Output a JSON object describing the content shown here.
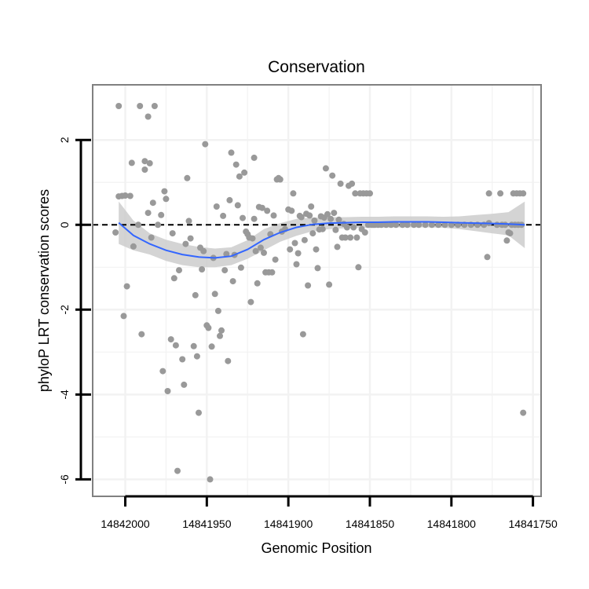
{
  "chart_data": {
    "type": "scatter",
    "title": "Conservation",
    "xlabel": "Genomic Position",
    "ylabel": "phyloP LRT conservation scores",
    "x_reversed": true,
    "xlim": [
      14842020,
      14841745
    ],
    "ylim": [
      -6.4,
      3.3
    ],
    "x_ticks": [
      14842000,
      14841950,
      14841900,
      14841850,
      14841800,
      14841750
    ],
    "x_tick_labels": [
      "14842000",
      "14841950",
      "14841900",
      "14841850",
      "14841800",
      "14841750"
    ],
    "y_ticks": [
      2,
      0,
      -2,
      -4,
      -6
    ],
    "y_tick_labels": [
      "2",
      "0",
      "-2",
      "-4",
      "-6"
    ],
    "grid": true,
    "reference_line": {
      "y": 0,
      "style": "dashed"
    },
    "colors": {
      "points": "#999999",
      "smooth": "#3366ff",
      "ribbon": "#cccccc",
      "grid": "#f2f2f2",
      "frame": "#808080"
    },
    "series": [
      {
        "name": "phyloP LRT score",
        "points": [
          [
            14842004,
            2.8
          ],
          [
            14842004,
            0.67
          ],
          [
            14842002,
            0.68
          ],
          [
            14842001,
            -2.15
          ],
          [
            14842000,
            0.69
          ],
          [
            14842006,
            -0.18
          ],
          [
            14841999,
            -1.45
          ],
          [
            14841997,
            0.68
          ],
          [
            14841996,
            1.46
          ],
          [
            14841995,
            -0.51
          ],
          [
            14841992,
            0.0
          ],
          [
            14841991,
            2.8
          ],
          [
            14841990,
            -2.58
          ],
          [
            14841988,
            1.3
          ],
          [
            14841988,
            1.5
          ],
          [
            14841986,
            2.55
          ],
          [
            14841985,
            1.45
          ],
          [
            14841984,
            -0.3
          ],
          [
            14841986,
            0.28
          ],
          [
            14841983,
            0.52
          ],
          [
            14841982,
            2.8
          ],
          [
            14841980,
            0.0
          ],
          [
            14841978,
            0.23
          ],
          [
            14841977,
            -3.45
          ],
          [
            14841976,
            0.79
          ],
          [
            14841975,
            0.61
          ],
          [
            14841974,
            -3.92
          ],
          [
            14841972,
            -2.7
          ],
          [
            14841971,
            -0.2
          ],
          [
            14841970,
            -1.26
          ],
          [
            14841969,
            -2.84
          ],
          [
            14841968,
            -5.8
          ],
          [
            14841967,
            -1.07
          ],
          [
            14841965,
            -3.17
          ],
          [
            14841964,
            -3.77
          ],
          [
            14841963,
            -0.45
          ],
          [
            14841962,
            1.1
          ],
          [
            14841961,
            0.09
          ],
          [
            14841960,
            -0.32
          ],
          [
            14841958,
            -2.86
          ],
          [
            14841957,
            -1.66
          ],
          [
            14841956,
            -3.1
          ],
          [
            14841955,
            -4.43
          ],
          [
            14841954,
            -0.54
          ],
          [
            14841953,
            -1.05
          ],
          [
            14841952,
            -0.62
          ],
          [
            14841951,
            1.9
          ],
          [
            14841950,
            -2.37
          ],
          [
            14841949,
            -2.43
          ],
          [
            14841948,
            -6.0
          ],
          [
            14841947,
            -2.87
          ],
          [
            14841946,
            -0.78
          ],
          [
            14841945,
            -1.63
          ],
          [
            14841944,
            0.43
          ],
          [
            14841943,
            -2.03
          ],
          [
            14841942,
            -2.62
          ],
          [
            14841941,
            -2.49
          ],
          [
            14841940,
            0.21
          ],
          [
            14841939,
            -1.07
          ],
          [
            14841938,
            -0.69
          ],
          [
            14841937,
            -3.21
          ],
          [
            14841936,
            0.58
          ],
          [
            14841935,
            1.7
          ],
          [
            14841934,
            -1.33
          ],
          [
            14841933,
            -0.71
          ],
          [
            14841932,
            1.42
          ],
          [
            14841931,
            0.46
          ],
          [
            14841930,
            1.14
          ],
          [
            14841929,
            -1.01
          ],
          [
            14841928,
            0.16
          ],
          [
            14841927,
            1.23
          ],
          [
            14841926,
            -0.16
          ],
          [
            14841925,
            -0.22
          ],
          [
            14841924,
            -0.3
          ],
          [
            14841923,
            -1.82
          ],
          [
            14841922,
            -0.32
          ],
          [
            14841921,
            0.14
          ],
          [
            14841921,
            1.58
          ],
          [
            14841920,
            -0.62
          ],
          [
            14841919,
            -1.38
          ],
          [
            14841918,
            0.42
          ],
          [
            14841917,
            -0.54
          ],
          [
            14841916,
            0.4
          ],
          [
            14841915,
            -0.66
          ],
          [
            14841914,
            -1.12
          ],
          [
            14841913,
            0.33
          ],
          [
            14841912,
            -1.12
          ],
          [
            14841911,
            -0.22
          ],
          [
            14841910,
            -1.12
          ],
          [
            14841909,
            0.22
          ],
          [
            14841908,
            -0.82
          ],
          [
            14841907,
            1.07
          ],
          [
            14841906,
            1.1
          ],
          [
            14841905,
            1.07
          ],
          [
            14841904,
            -0.16
          ],
          [
            14841902,
            -0.1
          ],
          [
            14841900,
            0.36
          ],
          [
            14841899,
            -0.58
          ],
          [
            14841898,
            0.33
          ],
          [
            14841897,
            0.74
          ],
          [
            14841896,
            -0.43
          ],
          [
            14841895,
            -0.93
          ],
          [
            14841894,
            -0.67
          ],
          [
            14841893,
            0.21
          ],
          [
            14841892,
            0.18
          ],
          [
            14841891,
            -2.58
          ],
          [
            14841890,
            -0.36
          ],
          [
            14841889,
            0.26
          ],
          [
            14841888,
            -1.43
          ],
          [
            14841887,
            0.22
          ],
          [
            14841886,
            0.43
          ],
          [
            14841885,
            -0.2
          ],
          [
            14841884,
            0.1
          ],
          [
            14841883,
            -0.58
          ],
          [
            14841882,
            -1.02
          ],
          [
            14841881,
            -0.11
          ],
          [
            14841880,
            0.2
          ],
          [
            14841879,
            -0.1
          ],
          [
            14841878,
            0.17
          ],
          [
            14841877,
            1.33
          ],
          [
            14841876,
            0.25
          ],
          [
            14841875,
            -1.41
          ],
          [
            14841874,
            0.14
          ],
          [
            14841873,
            1.16
          ],
          [
            14841872,
            0.28
          ],
          [
            14841871,
            -0.12
          ],
          [
            14841870,
            -0.52
          ],
          [
            14841869,
            0.12
          ],
          [
            14841868,
            0.97
          ],
          [
            14841867,
            -0.3
          ],
          [
            14841866,
            0.02
          ],
          [
            14841865,
            -0.3
          ],
          [
            14841864,
            -0.06
          ],
          [
            14841863,
            0.92
          ],
          [
            14841862,
            -0.3
          ],
          [
            14841861,
            0.97
          ],
          [
            14841860,
            -0.06
          ],
          [
            14841859,
            0.74
          ],
          [
            14841858,
            -0.3
          ],
          [
            14841857,
            -1.0
          ],
          [
            14841856,
            0.74
          ],
          [
            14841855,
            -0.1
          ],
          [
            14841854,
            0.74
          ],
          [
            14841853,
            -0.18
          ],
          [
            14841852,
            0.74
          ],
          [
            14841851,
            0.0
          ],
          [
            14841850,
            0.74
          ],
          [
            14841849,
            0.0
          ],
          [
            14841848,
            0.0
          ],
          [
            14841847,
            0.0
          ],
          [
            14841845,
            0.0
          ],
          [
            14841843,
            0.0
          ],
          [
            14841840,
            0.0
          ],
          [
            14841837,
            0.0
          ],
          [
            14841834,
            0.0
          ],
          [
            14841830,
            0.0
          ],
          [
            14841827,
            0.0
          ],
          [
            14841823,
            0.0
          ],
          [
            14841820,
            0.0
          ],
          [
            14841816,
            0.0
          ],
          [
            14841812,
            0.0
          ],
          [
            14841808,
            0.0
          ],
          [
            14841804,
            0.0
          ],
          [
            14841800,
            0.0
          ],
          [
            14841796,
            0.0
          ],
          [
            14841792,
            0.0
          ],
          [
            14841788,
            0.0
          ],
          [
            14841784,
            0.0
          ],
          [
            14841780,
            0.0
          ],
          [
            14841777,
            0.74
          ],
          [
            14841777,
            0.04
          ],
          [
            14841778,
            -0.76
          ],
          [
            14841772,
            0.0
          ],
          [
            14841770,
            0.74
          ],
          [
            14841769,
            0.0
          ],
          [
            14841767,
            0.0
          ],
          [
            14841766,
            -0.37
          ],
          [
            14841765,
            -0.18
          ],
          [
            14841764,
            -0.2
          ],
          [
            14841763,
            0.0
          ],
          [
            14841762,
            0.74
          ],
          [
            14841761,
            0.0
          ],
          [
            14841760,
            0.74
          ],
          [
            14841759,
            0.0
          ],
          [
            14841758,
            0.74
          ],
          [
            14841757,
            0.0
          ],
          [
            14841756,
            0.74
          ],
          [
            14841756,
            -4.43
          ]
        ]
      }
    ],
    "smooth": {
      "method": "loess",
      "x": [
        14842004,
        14841995,
        14841985,
        14841975,
        14841965,
        14841955,
        14841945,
        14841935,
        14841925,
        14841915,
        14841905,
        14841895,
        14841885,
        14841875,
        14841865,
        14841855,
        14841845,
        14841835,
        14841825,
        14841815,
        14841805,
        14841795,
        14841785,
        14841775,
        14841765,
        14841755
      ],
      "y": [
        0.05,
        -0.25,
        -0.45,
        -0.6,
        -0.7,
        -0.76,
        -0.78,
        -0.74,
        -0.58,
        -0.35,
        -0.18,
        -0.06,
        0.01,
        0.04,
        0.05,
        0.06,
        0.06,
        0.07,
        0.07,
        0.07,
        0.06,
        0.05,
        0.04,
        0.03,
        0.02,
        0.0
      ],
      "lower": [
        -0.45,
        -0.6,
        -0.7,
        -0.85,
        -0.95,
        -1.0,
        -1.0,
        -0.95,
        -0.8,
        -0.6,
        -0.4,
        -0.26,
        -0.15,
        -0.1,
        -0.08,
        -0.07,
        -0.07,
        -0.06,
        -0.06,
        -0.06,
        -0.07,
        -0.1,
        -0.15,
        -0.2,
        -0.25,
        -0.55
      ],
      "upper": [
        0.55,
        0.1,
        -0.2,
        -0.35,
        -0.45,
        -0.52,
        -0.56,
        -0.53,
        -0.36,
        -0.1,
        0.04,
        0.14,
        0.17,
        0.18,
        0.18,
        0.19,
        0.19,
        0.2,
        0.2,
        0.2,
        0.19,
        0.2,
        0.23,
        0.26,
        0.3,
        0.55
      ]
    }
  }
}
